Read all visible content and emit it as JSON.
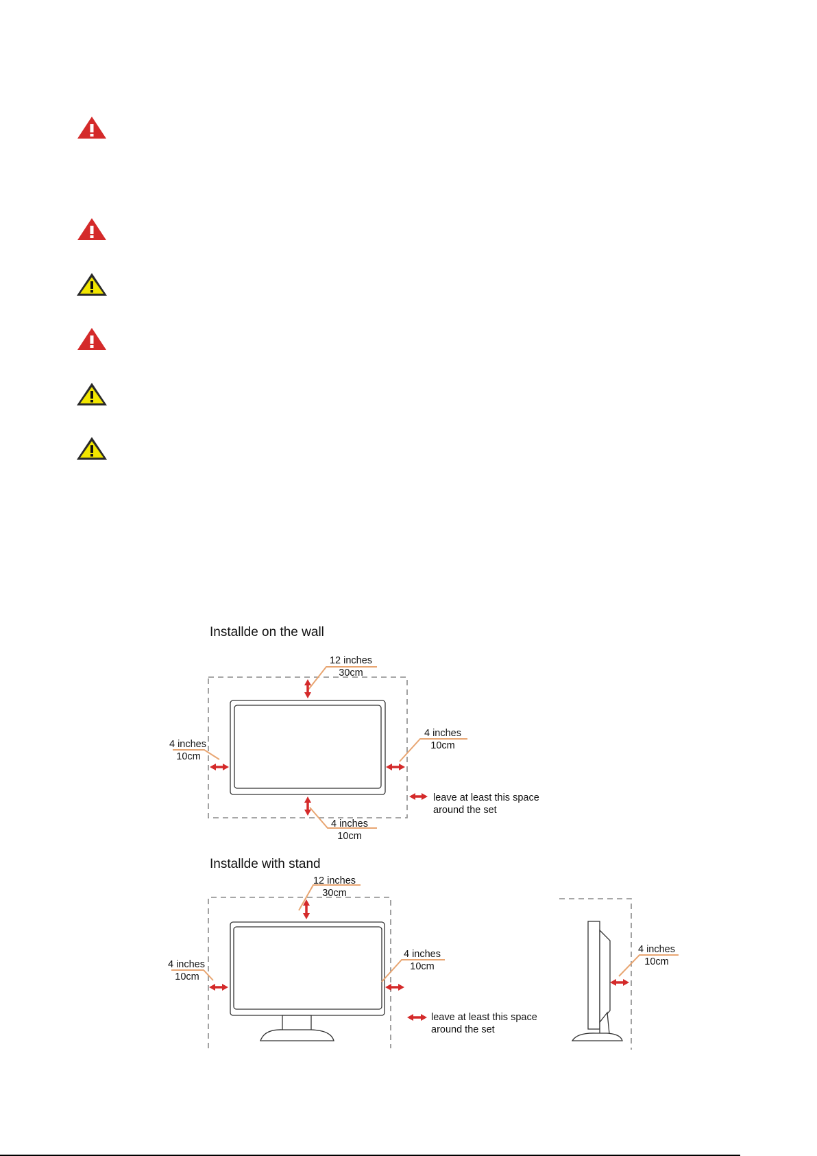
{
  "warning_icons": [
    {
      "type": "red-warning",
      "color": "#d42a2a"
    },
    {
      "type": "red-warning",
      "color": "#d42a2a"
    },
    {
      "type": "yellow-caution",
      "color": "#f2e600"
    },
    {
      "type": "red-warning",
      "color": "#d42a2a"
    },
    {
      "type": "yellow-caution",
      "color": "#f2e600"
    },
    {
      "type": "yellow-caution",
      "color": "#f2e600"
    }
  ],
  "wall_diagram": {
    "title": "Installde on the wall",
    "top": {
      "inches": "12 inches",
      "cm": "30cm"
    },
    "left": {
      "inches": "4 inches",
      "cm": "10cm"
    },
    "right": {
      "inches": "4 inches",
      "cm": "10cm"
    },
    "bottom": {
      "inches": "4 inches",
      "cm": "10cm"
    },
    "legend": {
      "line1": "leave at least this space",
      "line2": "around the set"
    }
  },
  "stand_diagram": {
    "title": "Installde with stand",
    "top": {
      "inches": "12 inches",
      "cm": "30cm"
    },
    "left": {
      "inches": "4 inches",
      "cm": "10cm"
    },
    "right": {
      "inches": "4 inches",
      "cm": "10cm"
    },
    "side": {
      "inches": "4 inches",
      "cm": "10cm"
    },
    "legend": {
      "line1": "leave at least this space",
      "line2": "around the set"
    }
  },
  "colors": {
    "arrow": "#d42a2a",
    "leader": "#e8a571",
    "dashed_border": "#8a8a8a"
  }
}
